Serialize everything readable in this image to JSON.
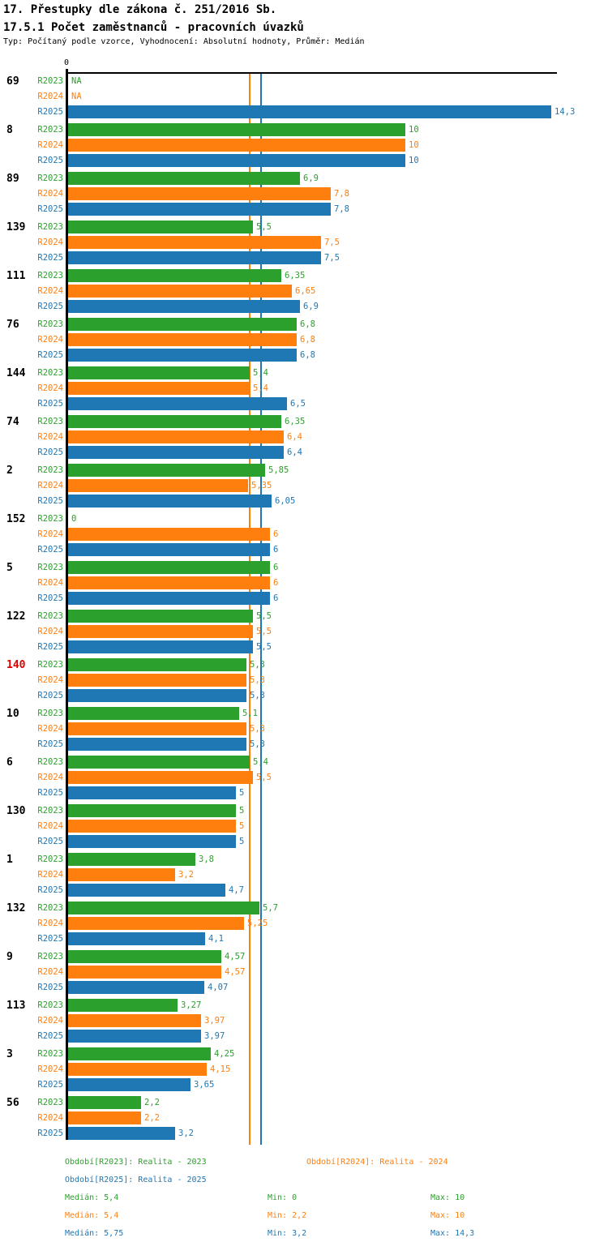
{
  "header": {
    "title": "17. Přestupky dle zákona č. 251/2016 Sb.",
    "subtitle": "17.5.1 Počet zaměstnanců - pracovních úvazků",
    "meta": "Typ: Počítaný podle vzorce, Vyhodnocení: Absolutní hodnoty, Průměr: Medián"
  },
  "chart_data": {
    "type": "bar",
    "orientation": "horizontal",
    "title": "17.5.1 Počet zaměstnanců - pracovních úvazků",
    "x_axis": {
      "zero_label": "0",
      "min": 0,
      "max_visible": 14.47,
      "grid": false
    },
    "series": [
      "R2023",
      "R2024",
      "R2025"
    ],
    "colors": {
      "R2023": "#2ca02c",
      "R2024": "#ff7f0e",
      "R2025": "#1f77b4"
    },
    "highlight_color": "#e00000",
    "na_label": "NA",
    "median_lines": [
      {
        "series": "R2023",
        "value": 5.4
      },
      {
        "series": "R2024",
        "value": 5.4
      },
      {
        "series": "R2025",
        "value": 5.75
      }
    ],
    "groups": [
      {
        "category": "69",
        "highlight": false,
        "values": [
          null,
          null,
          14.3
        ],
        "labels": [
          "NA",
          "NA",
          "14,3"
        ]
      },
      {
        "category": "8",
        "highlight": false,
        "values": [
          10,
          10,
          10
        ],
        "labels": [
          "10",
          "10",
          "10"
        ]
      },
      {
        "category": "89",
        "highlight": false,
        "values": [
          6.9,
          7.8,
          7.8
        ],
        "labels": [
          "6,9",
          "7,8",
          "7,8"
        ]
      },
      {
        "category": "139",
        "highlight": false,
        "values": [
          5.5,
          7.5,
          7.5
        ],
        "labels": [
          "5,5",
          "7,5",
          "7,5"
        ]
      },
      {
        "category": "111",
        "highlight": false,
        "values": [
          6.35,
          6.65,
          6.9
        ],
        "labels": [
          "6,35",
          "6,65",
          "6,9"
        ]
      },
      {
        "category": "76",
        "highlight": false,
        "values": [
          6.8,
          6.8,
          6.8
        ],
        "labels": [
          "6,8",
          "6,8",
          "6,8"
        ]
      },
      {
        "category": "144",
        "highlight": false,
        "values": [
          5.4,
          5.4,
          6.5
        ],
        "labels": [
          "5,4",
          "5,4",
          "6,5"
        ]
      },
      {
        "category": "74",
        "highlight": false,
        "values": [
          6.35,
          6.4,
          6.4
        ],
        "labels": [
          "6,35",
          "6,4",
          "6,4"
        ]
      },
      {
        "category": "2",
        "highlight": false,
        "values": [
          5.85,
          5.35,
          6.05
        ],
        "labels": [
          "5,85",
          "5,35",
          "6,05"
        ]
      },
      {
        "category": "152",
        "highlight": false,
        "values": [
          0,
          6,
          6
        ],
        "labels": [
          "0",
          "6",
          "6"
        ]
      },
      {
        "category": "5",
        "highlight": false,
        "values": [
          6,
          6,
          6
        ],
        "labels": [
          "6",
          "6",
          "6"
        ]
      },
      {
        "category": "122",
        "highlight": false,
        "values": [
          5.5,
          5.5,
          5.5
        ],
        "labels": [
          "5,5",
          "5,5",
          "5,5"
        ]
      },
      {
        "category": "140",
        "highlight": true,
        "values": [
          5.3,
          5.3,
          5.3
        ],
        "labels": [
          "5,3",
          "5,3",
          "5,3"
        ]
      },
      {
        "category": "10",
        "highlight": false,
        "values": [
          5.1,
          5.3,
          5.3
        ],
        "labels": [
          "5,1",
          "5,3",
          "5,3"
        ]
      },
      {
        "category": "6",
        "highlight": false,
        "values": [
          5.4,
          5.5,
          5
        ],
        "labels": [
          "5,4",
          "5,5",
          "5"
        ]
      },
      {
        "category": "130",
        "highlight": false,
        "values": [
          5,
          5,
          5
        ],
        "labels": [
          "5",
          "5",
          "5"
        ]
      },
      {
        "category": "1",
        "highlight": false,
        "values": [
          3.8,
          3.2,
          4.7
        ],
        "labels": [
          "3,8",
          "3,2",
          "4,7"
        ]
      },
      {
        "category": "132",
        "highlight": false,
        "values": [
          5.7,
          5.25,
          4.1
        ],
        "labels": [
          "5,7",
          "5,25",
          "4,1"
        ]
      },
      {
        "category": "9",
        "highlight": false,
        "values": [
          4.57,
          4.57,
          4.07
        ],
        "labels": [
          "4,57",
          "4,57",
          "4,07"
        ]
      },
      {
        "category": "113",
        "highlight": false,
        "values": [
          3.27,
          3.97,
          3.97
        ],
        "labels": [
          "3,27",
          "3,97",
          "3,97"
        ]
      },
      {
        "category": "3",
        "highlight": false,
        "values": [
          4.25,
          4.15,
          3.65
        ],
        "labels": [
          "4,25",
          "4,15",
          "3,65"
        ]
      },
      {
        "category": "56",
        "highlight": false,
        "values": [
          2.2,
          2.2,
          3.2
        ],
        "labels": [
          "2,2",
          "2,2",
          "3,2"
        ]
      }
    ]
  },
  "legend": {
    "periods": [
      {
        "id": "R2023",
        "label": "Období[R2023]: Realita - 2023"
      },
      {
        "id": "R2024",
        "label": "Období[R2024]: Realita - 2024"
      },
      {
        "id": "R2025",
        "label": "Období[R2025]: Realita - 2025"
      }
    ],
    "stats": [
      {
        "id": "R2023",
        "median": "Medián: 5,4",
        "min": "Min: 0",
        "max": "Max: 10"
      },
      {
        "id": "R2024",
        "median": "Medián: 5,4",
        "min": "Min: 2,2",
        "max": "Max: 10"
      },
      {
        "id": "R2025",
        "median": "Medián: 5,75",
        "min": "Min: 3,2",
        "max": "Max: 14,3"
      }
    ]
  }
}
